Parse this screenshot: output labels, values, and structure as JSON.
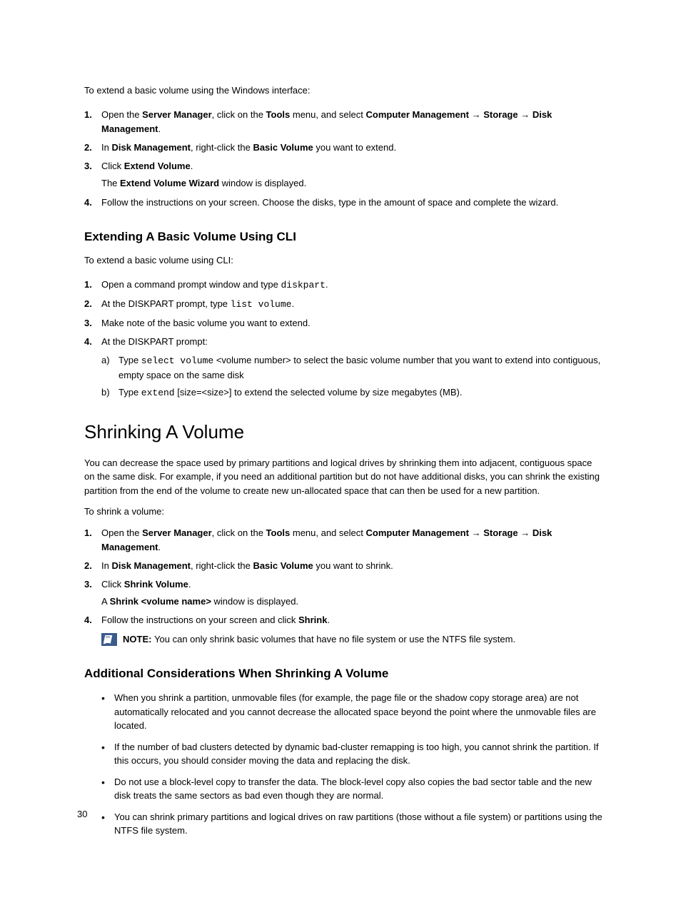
{
  "page_number": "30",
  "section1": {
    "intro": "To extend a basic volume using the Windows interface:",
    "steps": [
      {
        "pre": "Open the ",
        "b1": "Server Manager",
        "mid1": ", click on the ",
        "b2": "Tools",
        "mid2": " menu, and select ",
        "b3": "Computer Management",
        "arrow1": " → ",
        "b4": "Storage",
        "arrow2": " → ",
        "b5": "Disk Management",
        "post": "."
      },
      {
        "pre": "In ",
        "b1": "Disk Management",
        "mid1": ", right-click the ",
        "b2": "Basic Volume",
        "post": " you want to extend."
      },
      {
        "pre": "Click ",
        "b1": "Extend Volume",
        "post": ".",
        "sub_pre": "The ",
        "sub_b": "Extend Volume Wizard",
        "sub_post": " window is displayed."
      },
      {
        "text": "Follow the instructions on your screen. Choose the disks, type in the amount of space and complete the wizard."
      }
    ]
  },
  "section2": {
    "heading": "Extending A Basic Volume Using CLI",
    "intro": "To extend a basic volume using CLI:",
    "steps": [
      {
        "pre": "Open a command prompt window and type ",
        "mono": "diskpart",
        "post": "."
      },
      {
        "pre": "At the DISKPART prompt, type ",
        "mono": "list volume",
        "post": "."
      },
      {
        "text": "Make note of the basic volume you want to extend."
      },
      {
        "text": "At the DISKPART prompt:",
        "subs": [
          {
            "marker": "a)",
            "pre": "Type ",
            "mono": "select volume",
            "mid": " <volume number> to select the basic volume number that you want to extend into contiguous, empty space on the same disk"
          },
          {
            "marker": "b)",
            "pre": "Type ",
            "mono": "extend",
            "mid": " [size=<size>] to extend the selected volume by size megabytes (MB)."
          }
        ]
      }
    ]
  },
  "section3": {
    "heading": "Shrinking A Volume",
    "para1": "You can decrease the space used by primary partitions and logical drives by shrinking them into adjacent, contiguous space on the same disk. For example, if you need an additional partition but do not have additional disks, you can shrink the existing partition from the end of the volume to create new un-allocated space that can then be used for a new partition.",
    "para2": "To shrink a volume:",
    "steps": [
      {
        "pre": "Open the ",
        "b1": "Server Manager",
        "mid1": ", click on the ",
        "b2": "Tools",
        "mid2": " menu, and select ",
        "b3": "Computer Management",
        "arrow1": " → ",
        "b4": "Storage",
        "arrow2": " → ",
        "b5": "Disk Management",
        "post": "."
      },
      {
        "pre": "In ",
        "b1": "Disk Management",
        "mid1": ", right-click the ",
        "b2": "Basic Volume",
        "post": " you want to shrink."
      },
      {
        "pre": "Click ",
        "b1": "Shrink Volume",
        "post": ".",
        "sub_pre": "A ",
        "sub_b": "Shrink <volume name>",
        "sub_post": " window is displayed."
      },
      {
        "pre": "Follow the instructions on your screen and click ",
        "b1": "Shrink",
        "post": ".",
        "note_label": "NOTE: ",
        "note_text": "You can only shrink basic volumes that have no file system or use the NTFS file system."
      }
    ]
  },
  "section4": {
    "heading": "Additional Considerations When Shrinking A Volume",
    "bullets": [
      "When you shrink a partition, unmovable files (for example, the page file or the shadow copy storage area) are not automatically relocated and you cannot decrease the allocated space beyond the point where the unmovable files are located.",
      "If the number of bad clusters detected by dynamic bad-cluster remapping is too high, you cannot shrink the partition. If this occurs, you should consider moving the data and replacing the disk.",
      "Do not use a block-level copy to transfer the data. The block-level copy also copies the bad sector table and the new disk treats the same sectors as bad even though they are normal.",
      "You can shrink primary partitions and logical drives on raw partitions (those without a file system) or partitions using the NTFS file system."
    ]
  }
}
